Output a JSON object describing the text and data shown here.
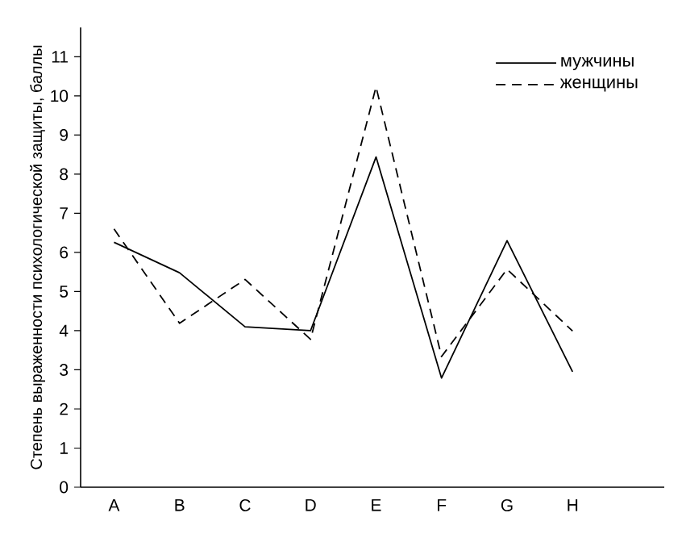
{
  "chart_data": {
    "type": "line",
    "ylabel": "Степень выраженности психологической защиты, баллы",
    "categories": [
      "A",
      "B",
      "C",
      "D",
      "E",
      "F",
      "G",
      "H"
    ],
    "series": [
      {
        "name": "мужчины",
        "color": "#000000",
        "line_style": "solid",
        "values": [
          6.26,
          5.48,
          4.1,
          4.0,
          8.44,
          2.79,
          6.3,
          2.95
        ]
      },
      {
        "name": "женщины",
        "color": "#000000",
        "line_style": "dashed",
        "values": [
          6.6,
          4.19,
          5.31,
          3.78,
          10.23,
          3.34,
          5.57,
          3.99
        ]
      }
    ],
    "ylim": [
      0,
      11.75
    ],
    "yticks": [
      0,
      1,
      2,
      3,
      4,
      5,
      6,
      7,
      8,
      9,
      10,
      11
    ],
    "legend": "top right",
    "grid": false,
    "marker": "none"
  }
}
